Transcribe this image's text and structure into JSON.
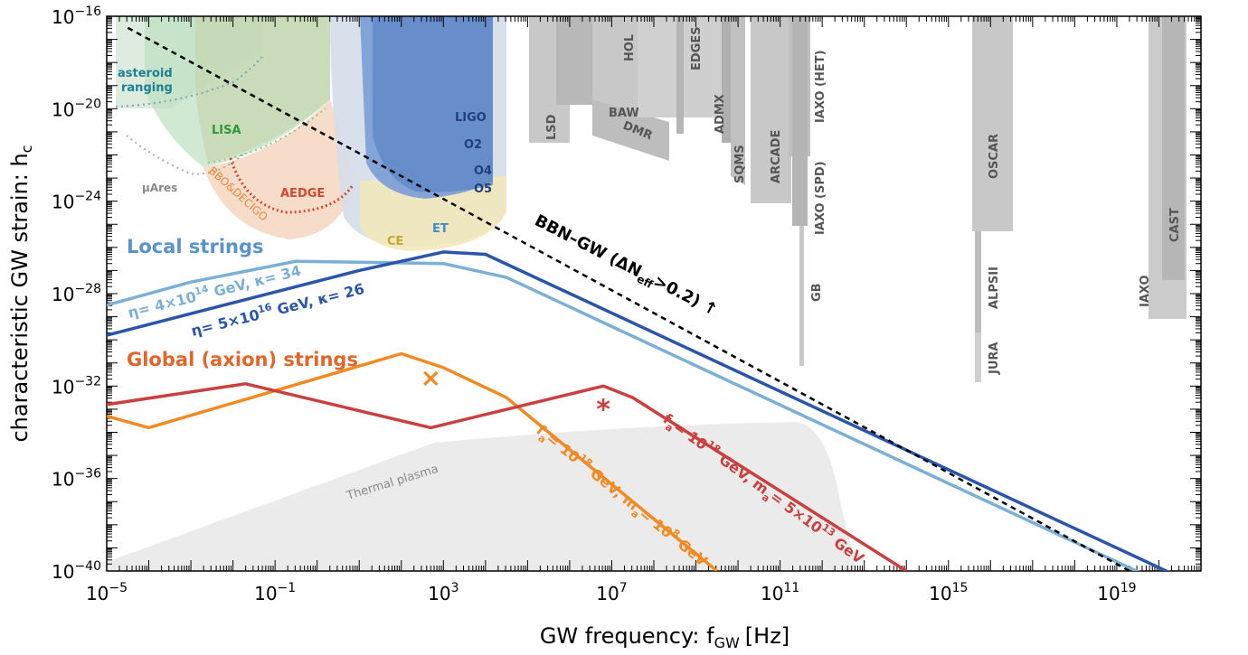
{
  "chart_data": {
    "type": "line",
    "xscale": "log",
    "yscale": "log",
    "xlabel": "GW frequency: f",
    "xlabel_sub": "GW",
    "xlabel_unit": "[Hz]",
    "ylabel": "characteristic GW strain: h",
    "ylabel_sub": "c",
    "xlim_log10": [
      -5,
      21
    ],
    "ylim_log10": [
      -40,
      -16
    ],
    "x_ticks": [
      {
        "base": "10",
        "exp": "−5",
        "v": -5
      },
      {
        "base": "10",
        "exp": "−1",
        "v": -1
      },
      {
        "base": "10",
        "exp": "3",
        "v": 3
      },
      {
        "base": "10",
        "exp": "7",
        "v": 7
      },
      {
        "base": "10",
        "exp": "11",
        "v": 11
      },
      {
        "base": "10",
        "exp": "15",
        "v": 15
      },
      {
        "base": "10",
        "exp": "19",
        "v": 19
      }
    ],
    "y_ticks": [
      {
        "base": "10",
        "exp": "−16",
        "v": -16
      },
      {
        "base": "10",
        "exp": "−20",
        "v": -20
      },
      {
        "base": "10",
        "exp": "−24",
        "v": -24
      },
      {
        "base": "10",
        "exp": "−28",
        "v": -28
      },
      {
        "base": "10",
        "exp": "−32",
        "v": -32
      },
      {
        "base": "10",
        "exp": "−36",
        "v": -36
      },
      {
        "base": "10",
        "exp": "−40",
        "v": -40
      }
    ],
    "series": [
      {
        "name": "η= 4×10¹⁴ GeV, κ= 34",
        "group": "Local strings",
        "color": "#7bafd4",
        "x_log10": [
          -5,
          -3,
          -0.5,
          3,
          4.5,
          21
        ],
        "y_log10": [
          -28.5,
          -27.5,
          -26.6,
          -26.7,
          -27.3,
          -41.3
        ]
      },
      {
        "name": "η= 5×10¹⁶ GeV, κ= 26",
        "group": "Local strings",
        "color": "#2b55a8",
        "x_log10": [
          -5,
          -2,
          1,
          3,
          4,
          21
        ],
        "y_log10": [
          -29.8,
          -28.4,
          -27.0,
          -26.2,
          -26.3,
          -40.7
        ]
      },
      {
        "name": "fa= 10¹⁸ GeV, ma= 10⁸ GeV",
        "group": "Global (axion) strings",
        "color": "#f08a24",
        "x_log10": [
          -5,
          -4,
          2,
          3,
          4.5,
          9.5
        ],
        "y_log10": [
          -33.3,
          -33.8,
          -30.6,
          -31.2,
          -32.5,
          -40.0
        ]
      },
      {
        "name": "fa= 10¹⁸ GeV, ma= 5×10¹³ GeV",
        "group": "Global (axion) strings",
        "color": "#c8403f",
        "x_log10": [
          -5,
          -1.7,
          2.7,
          6.8,
          7.5,
          14.0
        ],
        "y_log10": [
          -32.8,
          -31.9,
          -33.8,
          -32.0,
          -32.5,
          -40.0
        ]
      },
      {
        "name": "BBN–GW (ΔN_eff>0.2)",
        "color": "#000000",
        "dashed": true,
        "x_log10": [
          -4.5,
          19.3
        ],
        "y_log10": [
          -16.5,
          -40.0
        ]
      }
    ],
    "markers": [
      {
        "symbol": "×",
        "color": "#f08a24",
        "x_log10": 2.7,
        "y_log10": -31.7
      },
      {
        "symbol": "*",
        "color": "#c8403f",
        "x_log10": 6.8,
        "y_log10": -33.1
      }
    ],
    "annotations": {
      "local_strings": "Local strings",
      "global_strings": "Global (axion) strings",
      "eta_light_pre": "η= 4×10",
      "eta_light_sup": "14",
      "eta_light_post": " GeV, κ= 34",
      "eta_dark_pre": "η= 5×10",
      "eta_dark_sup": "16",
      "eta_dark_post": " GeV, κ= 26",
      "bbn_pre": "BBN–GW (ΔN",
      "bbn_sub": "eff",
      "bbn_post": ">0.2) ↑",
      "fa_orange": [
        "f",
        "a",
        "= 10",
        "18",
        " GeV, m",
        "a",
        "= 10",
        "8",
        " GeV"
      ],
      "fa_red": [
        "f",
        "a",
        "= 10",
        "18",
        " GeV, m",
        "a",
        "= 5×10",
        "13",
        " GeV"
      ],
      "thermal": "Thermal plasma"
    },
    "detectors": {
      "asteroid": [
        "asteroid",
        "ranging"
      ],
      "lisa": "LISA",
      "muares": "μAres",
      "bbo": "BBO&DECIGO",
      "aedge": "AEDGE",
      "ligo": "LIGO",
      "o2": "O2",
      "o4": "O4",
      "o5": "O5",
      "ce": "CE",
      "et": "ET",
      "hol": "HOL",
      "edges": "EDGES",
      "lsd": "LSD",
      "baw": "BAW",
      "dmr": "DMR",
      "admx": "ADMX",
      "sqms": "SQMS",
      "arcade": "ARCADE",
      "iaxo_het": "IAXO (HET)",
      "iaxo_spd": "IAXO (SPD)",
      "gb": "GB",
      "oscar": "OSCAR",
      "alpsii": "ALPSII",
      "jura": "JURA",
      "iaxo": "IAXO",
      "cast": "CAST"
    }
  }
}
